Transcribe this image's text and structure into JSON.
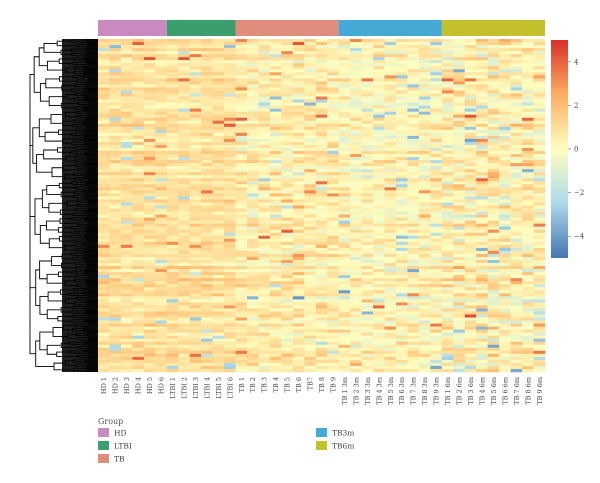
{
  "chart_data": {
    "type": "heatmap",
    "title": "",
    "columns": [
      {
        "label": "HD 1",
        "group": "HD"
      },
      {
        "label": "HD 2",
        "group": "HD"
      },
      {
        "label": "HD 3",
        "group": "HD"
      },
      {
        "label": "HD 4",
        "group": "HD"
      },
      {
        "label": "HD 5",
        "group": "HD"
      },
      {
        "label": "HD 6",
        "group": "HD"
      },
      {
        "label": "LTBI 1",
        "group": "LTBI"
      },
      {
        "label": "LTBI 2",
        "group": "LTBI"
      },
      {
        "label": "LTBI 3",
        "group": "LTBI"
      },
      {
        "label": "LTBI 4",
        "group": "LTBI"
      },
      {
        "label": "LTBI 5",
        "group": "LTBI"
      },
      {
        "label": "LTBI 6",
        "group": "LTBI"
      },
      {
        "label": "TB 1",
        "group": "TB"
      },
      {
        "label": "TB 2",
        "group": "TB"
      },
      {
        "label": "TB 3",
        "group": "TB"
      },
      {
        "label": "TB 4",
        "group": "TB"
      },
      {
        "label": "TB 5",
        "group": "TB"
      },
      {
        "label": "TB 6",
        "group": "TB"
      },
      {
        "label": "TB7",
        "group": "TB"
      },
      {
        "label": "TB 8",
        "group": "TB"
      },
      {
        "label": "TB 9",
        "group": "TB"
      },
      {
        "label": "TB 1 3m",
        "group": "TB3m"
      },
      {
        "label": "TB 2 3m",
        "group": "TB3m"
      },
      {
        "label": "TB 3 3m",
        "group": "TB3m"
      },
      {
        "label": "TB 4 3m",
        "group": "TB3m"
      },
      {
        "label": "TB 5 3m",
        "group": "TB3m"
      },
      {
        "label": "TB 6 3m",
        "group": "TB3m"
      },
      {
        "label": "TB 7 3m",
        "group": "TB3m"
      },
      {
        "label": "TB 8 3m",
        "group": "TB3m"
      },
      {
        "label": "TB 9 3m",
        "group": "TB3m"
      },
      {
        "label": "TB 1 6m",
        "group": "TB6m"
      },
      {
        "label": "TB 2 6m",
        "group": "TB6m"
      },
      {
        "label": "TB 3 6m",
        "group": "TB6m"
      },
      {
        "label": "TB 4 6m",
        "group": "TB6m"
      },
      {
        "label": "TB 5 6m",
        "group": "TB6m"
      },
      {
        "label": "TB 6 6m",
        "group": "TB6m"
      },
      {
        "label": "TB 7 6m",
        "group": "TB6m"
      },
      {
        "label": "TB 8 6m",
        "group": "TB6m"
      },
      {
        "label": "TB 9 6m",
        "group": "TB6m"
      }
    ],
    "groups": [
      {
        "name": "HD",
        "color": "#c98bbf"
      },
      {
        "name": "LTBI",
        "color": "#3c9e6c"
      },
      {
        "name": "TB",
        "color": "#df8e7d"
      },
      {
        "name": "TB3m",
        "color": "#45a9d6"
      },
      {
        "name": "TB6m",
        "color": "#c3c12b"
      }
    ],
    "legend_title": "Group",
    "color_scale": {
      "min": -5,
      "max": 5,
      "ticks": [
        4,
        2,
        0,
        -2,
        -4
      ],
      "colors": [
        "#4575b4",
        "#abd9e9",
        "#fffebf",
        "#fdae61",
        "#d73027"
      ]
    },
    "dendrogram": "rows",
    "grid": false,
    "legend_position": "bottom-left"
  }
}
